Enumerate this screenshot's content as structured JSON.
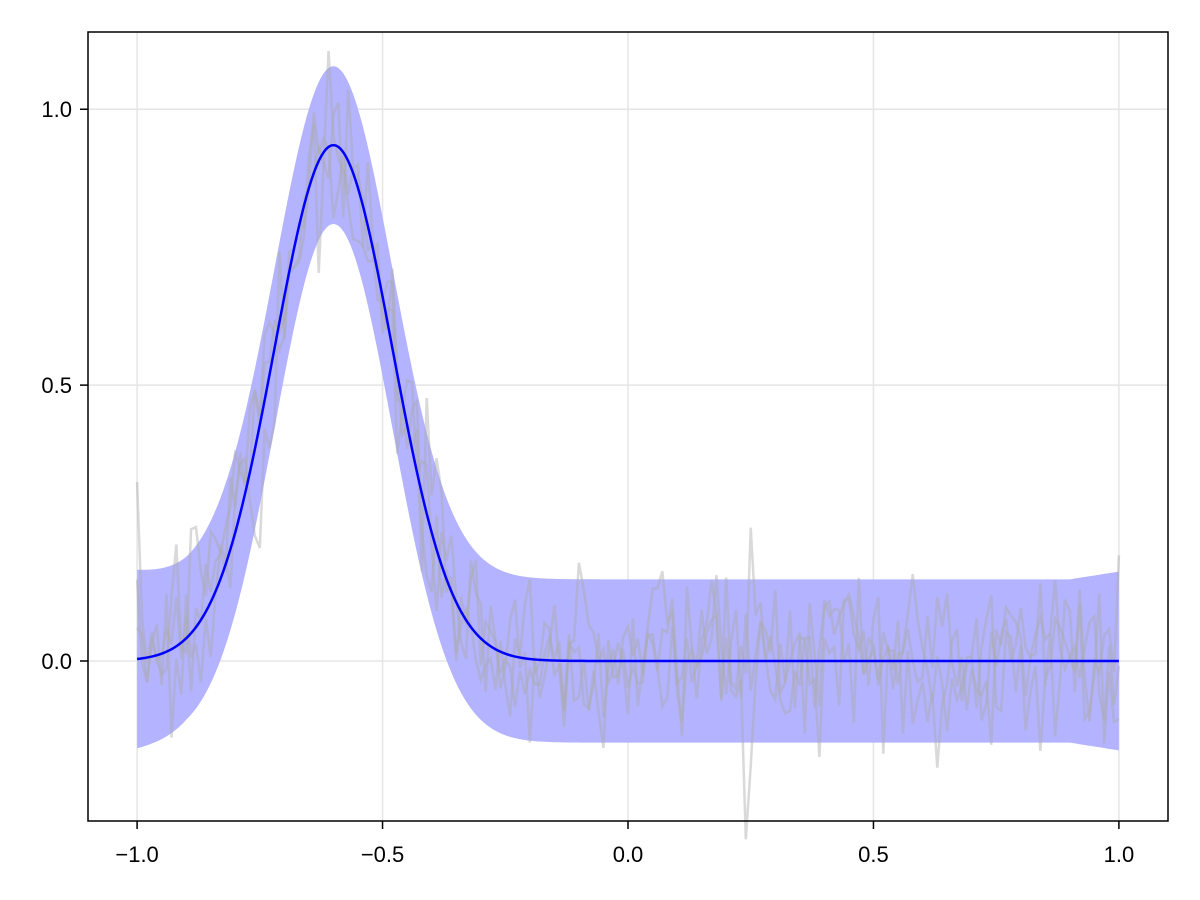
{
  "chart_data": {
    "type": "line",
    "title": "",
    "xlabel": "",
    "ylabel": "",
    "xlim": [
      -1.1,
      1.1
    ],
    "ylim": [
      -0.29,
      1.14
    ],
    "x_ticks": [
      -1.0,
      -0.5,
      0.0,
      0.5,
      1.0
    ],
    "x_tick_labels": [
      "−1.0",
      "−0.5",
      "0.0",
      "0.5",
      "1.0"
    ],
    "y_ticks": [
      0.0,
      0.5,
      1.0
    ],
    "y_tick_labels": [
      "0.0",
      "0.5",
      "1.0"
    ],
    "grid": true,
    "legend": "none",
    "mean_curve": {
      "model": "gaussian",
      "amplitude": 0.935,
      "center": -0.6,
      "sigma": 0.12,
      "x_range": [
        -1.0,
        1.0
      ],
      "color": "#0000ff"
    },
    "band": {
      "half_width_at_peak": 0.143,
      "half_width_baseline": 0.148,
      "half_width_at_edges": 0.162,
      "color": "#b3b3ff"
    },
    "samples": {
      "count": 3,
      "noise_sd": 0.07,
      "color": "#aaaaaa",
      "opacity": 0.45,
      "series": [
        {
          "x": [
            -1.0,
            -0.9,
            -0.8,
            -0.7,
            -0.6,
            -0.5,
            -0.4,
            -0.3,
            -0.2,
            -0.1,
            0.0,
            0.1,
            0.2,
            0.3,
            0.4,
            0.44,
            0.5,
            0.6,
            0.64,
            0.7,
            0.8,
            0.9,
            1.0
          ],
          "y": [
            0.1,
            0.1,
            0.45,
            0.72,
            0.98,
            0.62,
            0.25,
            0.05,
            0.02,
            -0.04,
            0.05,
            0.0,
            0.07,
            -0.03,
            0.02,
            0.19,
            0.05,
            -0.05,
            -0.22,
            0.03,
            0.12,
            -0.02,
            -0.12
          ]
        },
        {
          "x": [
            -1.0,
            -0.9,
            -0.8,
            -0.7,
            -0.6,
            -0.5,
            -0.4,
            -0.3,
            -0.2,
            -0.1,
            0.0,
            0.1,
            0.2,
            0.3,
            0.4,
            0.45,
            0.5,
            0.6,
            0.7,
            0.8,
            0.9,
            1.0
          ],
          "y": [
            -0.02,
            0.15,
            0.32,
            0.64,
            0.9,
            0.74,
            0.2,
            -0.05,
            0.08,
            -0.12,
            0.12,
            -0.1,
            0.1,
            0.05,
            -0.08,
            0.14,
            -0.02,
            0.06,
            -0.03,
            0.15,
            0.0,
            0.04
          ]
        },
        {
          "x": [
            -1.0,
            -0.9,
            -0.8,
            -0.7,
            -0.6,
            -0.5,
            -0.4,
            -0.3,
            -0.2,
            -0.1,
            0.0,
            0.1,
            0.2,
            0.3,
            0.4,
            0.5,
            0.6,
            0.7,
            0.8,
            0.9,
            1.0
          ],
          "y": [
            0.05,
            -0.05,
            0.38,
            0.6,
            0.85,
            0.7,
            0.3,
            0.1,
            -0.05,
            0.1,
            -0.02,
            0.06,
            -0.08,
            0.0,
            0.05,
            0.03,
            -0.06,
            0.08,
            -0.1,
            0.02,
            -0.05
          ]
        }
      ]
    }
  }
}
